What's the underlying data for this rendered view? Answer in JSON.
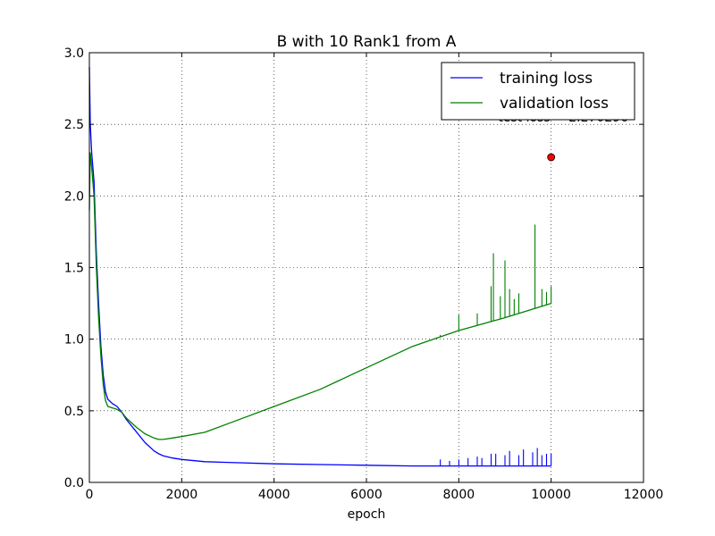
{
  "chart_data": {
    "type": "line",
    "title": "B with 10 Rank1 from A",
    "xlabel": "epoch",
    "ylabel": "",
    "xlim": [
      0,
      12000
    ],
    "ylim": [
      0.0,
      3.0
    ],
    "xticks": [
      0,
      2000,
      4000,
      6000,
      8000,
      10000,
      12000
    ],
    "yticks": [
      0.0,
      0.5,
      1.0,
      1.5,
      2.0,
      2.5,
      3.0
    ],
    "xtick_labels": [
      "0",
      "2000",
      "4000",
      "6000",
      "8000",
      "10000",
      "12000"
    ],
    "ytick_labels": [
      "0.0",
      "0.5",
      "1.0",
      "1.5",
      "2.0",
      "2.5",
      "3.0"
    ],
    "grid": true,
    "legend_position": "top-right",
    "series": [
      {
        "name": "training loss",
        "color": "#0000ff",
        "x": [
          0,
          20,
          50,
          100,
          150,
          200,
          250,
          300,
          350,
          400,
          500,
          600,
          700,
          800,
          1000,
          1200,
          1400,
          1500,
          1600,
          1800,
          2000,
          2500,
          3000,
          4000,
          5000,
          6000,
          7000,
          8000,
          9000,
          10000
        ],
        "y": [
          2.9,
          2.5,
          2.3,
          2.1,
          1.6,
          1.25,
          0.95,
          0.75,
          0.63,
          0.58,
          0.55,
          0.53,
          0.49,
          0.44,
          0.36,
          0.28,
          0.22,
          0.2,
          0.185,
          0.17,
          0.16,
          0.145,
          0.14,
          0.13,
          0.125,
          0.12,
          0.115,
          0.115,
          0.115,
          0.115
        ],
        "spikes": [
          [
            7600,
            0.16
          ],
          [
            7800,
            0.15
          ],
          [
            8000,
            0.16
          ],
          [
            8200,
            0.17
          ],
          [
            8400,
            0.18
          ],
          [
            8500,
            0.17
          ],
          [
            8700,
            0.2
          ],
          [
            8800,
            0.2
          ],
          [
            9000,
            0.19
          ],
          [
            9100,
            0.22
          ],
          [
            9300,
            0.19
          ],
          [
            9400,
            0.23
          ],
          [
            9600,
            0.21
          ],
          [
            9700,
            0.24
          ],
          [
            9800,
            0.19
          ],
          [
            9900,
            0.2
          ],
          [
            10000,
            0.2
          ]
        ]
      },
      {
        "name": "validation loss",
        "color": "#008000",
        "x": [
          0,
          20,
          50,
          100,
          150,
          200,
          250,
          300,
          350,
          400,
          500,
          600,
          700,
          800,
          1000,
          1200,
          1400,
          1500,
          1600,
          1800,
          2000,
          2500,
          3000,
          4000,
          5000,
          6000,
          7000,
          8000,
          9000,
          9500,
          10000
        ],
        "y": [
          1.9,
          2.3,
          2.2,
          2.0,
          1.5,
          1.15,
          0.88,
          0.68,
          0.57,
          0.53,
          0.52,
          0.51,
          0.49,
          0.45,
          0.39,
          0.34,
          0.31,
          0.3,
          0.3,
          0.31,
          0.32,
          0.35,
          0.41,
          0.53,
          0.65,
          0.8,
          0.95,
          1.06,
          1.15,
          1.2,
          1.25
        ],
        "spikes": [
          [
            7600,
            1.03
          ],
          [
            8000,
            1.17
          ],
          [
            8400,
            1.18
          ],
          [
            8700,
            1.37
          ],
          [
            8750,
            1.6
          ],
          [
            8900,
            1.3
          ],
          [
            9000,
            1.55
          ],
          [
            9100,
            1.35
          ],
          [
            9200,
            1.28
          ],
          [
            9300,
            1.32
          ],
          [
            9650,
            1.8
          ],
          [
            9800,
            1.35
          ],
          [
            9900,
            1.33
          ],
          [
            10000,
            1.37
          ]
        ]
      }
    ],
    "points": [
      {
        "x": 10000,
        "y": 2.27,
        "color": "#ff0000"
      }
    ],
    "annotations": [
      {
        "text": "test loss = 2.270296",
        "x": 8850,
        "y": 2.52
      }
    ]
  }
}
